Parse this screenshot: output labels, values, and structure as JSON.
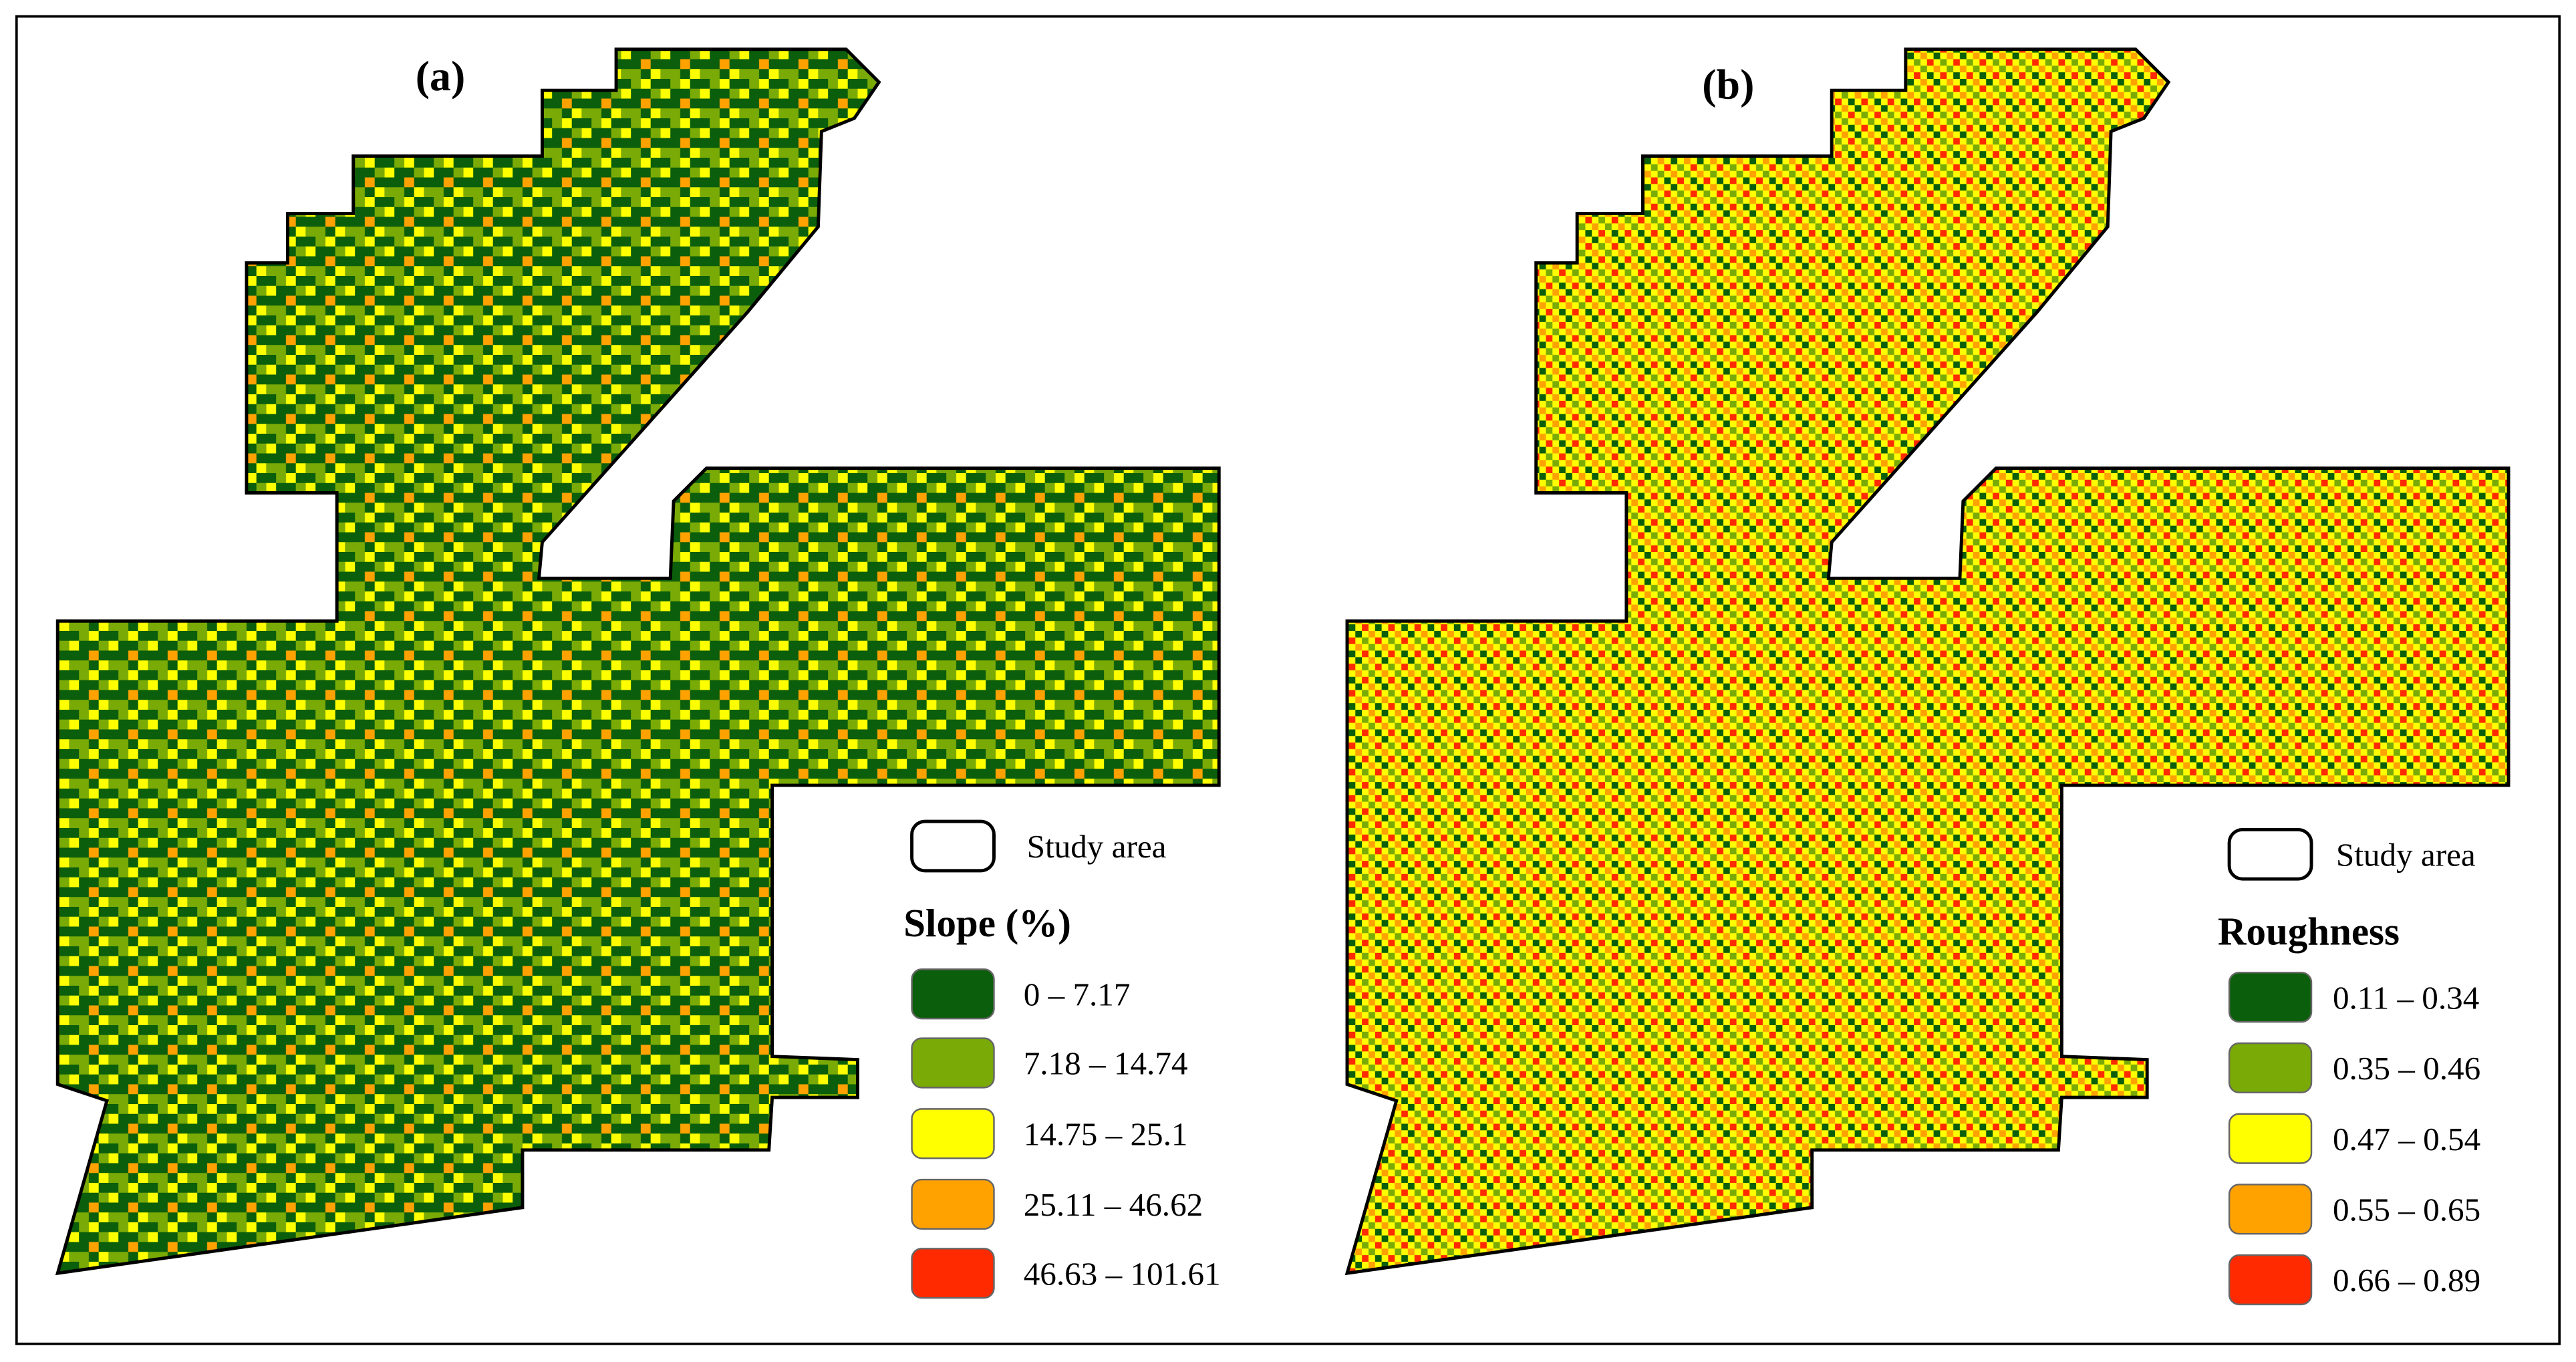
{
  "panels": [
    {
      "label": "(a)",
      "study_area": "Study area",
      "legend_title": "Slope (%)",
      "classes": [
        {
          "label": "0 – 7.17",
          "color": "#0b5e0b"
        },
        {
          "label": "7.18 – 14.74",
          "color": "#7aaa06"
        },
        {
          "label": "14.75 – 25.1",
          "color": "#ffff00"
        },
        {
          "label": "25.11 – 46.62",
          "color": "#ffa200"
        },
        {
          "label": "46.63 – 101.61",
          "color": "#ff2a00"
        }
      ]
    },
    {
      "label": "(b)",
      "study_area": "Study area",
      "legend_title": "Roughness",
      "classes": [
        {
          "label": "0.11 – 0.34",
          "color": "#0b5e0b"
        },
        {
          "label": "0.35 – 0.46",
          "color": "#7aaa06"
        },
        {
          "label": "0.47 – 0.54",
          "color": "#ffff00"
        },
        {
          "label": "0.55 – 0.65",
          "color": "#ffa200"
        },
        {
          "label": "0.66 – 0.89",
          "color": "#ff2a00"
        }
      ]
    }
  ]
}
